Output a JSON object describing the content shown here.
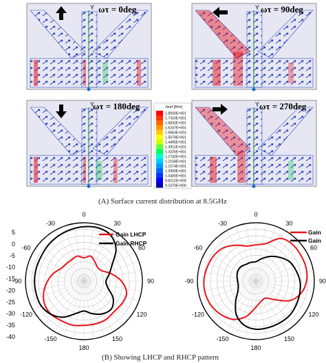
{
  "panel_a": {
    "caption": "(A)  Surface current distribution at 8.5GHz",
    "frames": [
      {
        "label": "ωτ = 0deg",
        "arrow": "up"
      },
      {
        "label": "ωτ = 90deg",
        "arrow": "left"
      },
      {
        "label": "ωτ = 180deg",
        "arrow": "down"
      },
      {
        "label": "ωτ = 270deg",
        "arrow": "right"
      }
    ],
    "axis_label": "Y",
    "legend": {
      "title": "Jsurf [A/m]",
      "values": [
        "1.8000E+001",
        "1.7416E+001",
        "1.6832E+001",
        "1.6247E+001",
        "1.5663E+001",
        "1.5079E+001",
        "1.4495E+001",
        "1.3911E+001",
        "1.3326E+001",
        "1.2742E+001",
        "1.2158E+001",
        "1.1574E+001",
        "1.0990E+001",
        "1.0405E+001",
        "9.8212E+000",
        "9.2370E+000"
      ],
      "colors": [
        "#ff0000",
        "#ff3300",
        "#ff6600",
        "#ff9900",
        "#ffcc00",
        "#ffff00",
        "#ccff00",
        "#66ff33",
        "#00ff66",
        "#00ffcc",
        "#00ccff",
        "#0099ff",
        "#0066ff",
        "#0033ff",
        "#0000ff",
        "#0000aa"
      ]
    }
  },
  "panel_b": {
    "caption": "(B)  Showing LHCP and RHCP pattern",
    "legend_left": [
      "Gain LHCP",
      "Gain RHCP"
    ],
    "legend_right": [
      "Gain",
      "Gain"
    ]
  },
  "chart_data": [
    {
      "type": "polar",
      "r_ticks": [
        "5",
        "0",
        "-5",
        "-10",
        "-15",
        "-20",
        "-25",
        "-30",
        "-35",
        "-40"
      ],
      "angle_ticks": [
        "0",
        "30",
        "-30",
        "-60",
        "60",
        "-90",
        "90",
        "-120",
        "120",
        "-150",
        "150",
        "180"
      ],
      "r_range": [
        -40,
        5
      ],
      "grid": true,
      "series": [
        {
          "name": "Gain LHCP",
          "color": "#e8141b",
          "angles": [
            0,
            15,
            30,
            45,
            60,
            75,
            90,
            105,
            120,
            135,
            150,
            165,
            180,
            195,
            210,
            225,
            240,
            255,
            270,
            285,
            300,
            315,
            330,
            345
          ],
          "gains": [
            -22,
            -20,
            -23,
            -25,
            -24,
            -18,
            -11,
            -6,
            -6,
            -7,
            -6,
            -6,
            -6,
            -5,
            -5,
            -4,
            -5,
            -8,
            -12,
            -16,
            -20,
            -21,
            -21,
            -20
          ]
        },
        {
          "name": "Gain RHCP",
          "color": "#000000",
          "angles": [
            0,
            15,
            30,
            45,
            60,
            75,
            90,
            105,
            120,
            135,
            150,
            165,
            180,
            195,
            210,
            225,
            240,
            255,
            270,
            285,
            300,
            315,
            330,
            345
          ],
          "gains": [
            2,
            2.5,
            1,
            -5,
            -15,
            -20,
            -23,
            -21,
            -14,
            -10,
            -11,
            -14,
            -17,
            -14,
            -8,
            -4,
            -2,
            -2,
            -2,
            -2,
            -2,
            -1,
            0,
            1
          ]
        }
      ]
    },
    {
      "type": "polar",
      "r_ticks": [],
      "angle_ticks": [
        "0",
        "30",
        "-30",
        "-60",
        "60",
        "-90",
        "90",
        "-120",
        "120",
        "-150",
        "150",
        "180"
      ],
      "r_range": [
        -40,
        5
      ],
      "grid": true,
      "series": [
        {
          "name": "Gain",
          "color": "#e8141b",
          "angles": [
            0,
            15,
            30,
            45,
            60,
            75,
            90,
            105,
            120,
            135,
            150,
            165,
            180,
            195,
            210,
            225,
            240,
            255,
            270,
            285,
            300,
            315,
            330,
            345
          ],
          "gains": [
            -12,
            -10,
            -2,
            0,
            0,
            0,
            -1,
            -4,
            -10,
            -20,
            -25,
            -24,
            -20,
            -12,
            -6,
            -3,
            -1,
            0,
            0,
            -1,
            -2,
            -4,
            -8,
            -12
          ]
        },
        {
          "name": "Gain",
          "color": "#000000",
          "angles": [
            0,
            15,
            30,
            45,
            60,
            75,
            90,
            105,
            120,
            135,
            150,
            165,
            180,
            195,
            210,
            225,
            240,
            255,
            270,
            285,
            300,
            315,
            330,
            345
          ],
          "gains": [
            -25,
            -22,
            -18,
            -14,
            -10,
            -8,
            -6,
            -5,
            -4,
            -3,
            -3,
            -3,
            -3,
            -5,
            -10,
            -18,
            -24,
            -26,
            -26,
            -25,
            -24,
            -24,
            -25,
            -25
          ]
        }
      ]
    }
  ]
}
